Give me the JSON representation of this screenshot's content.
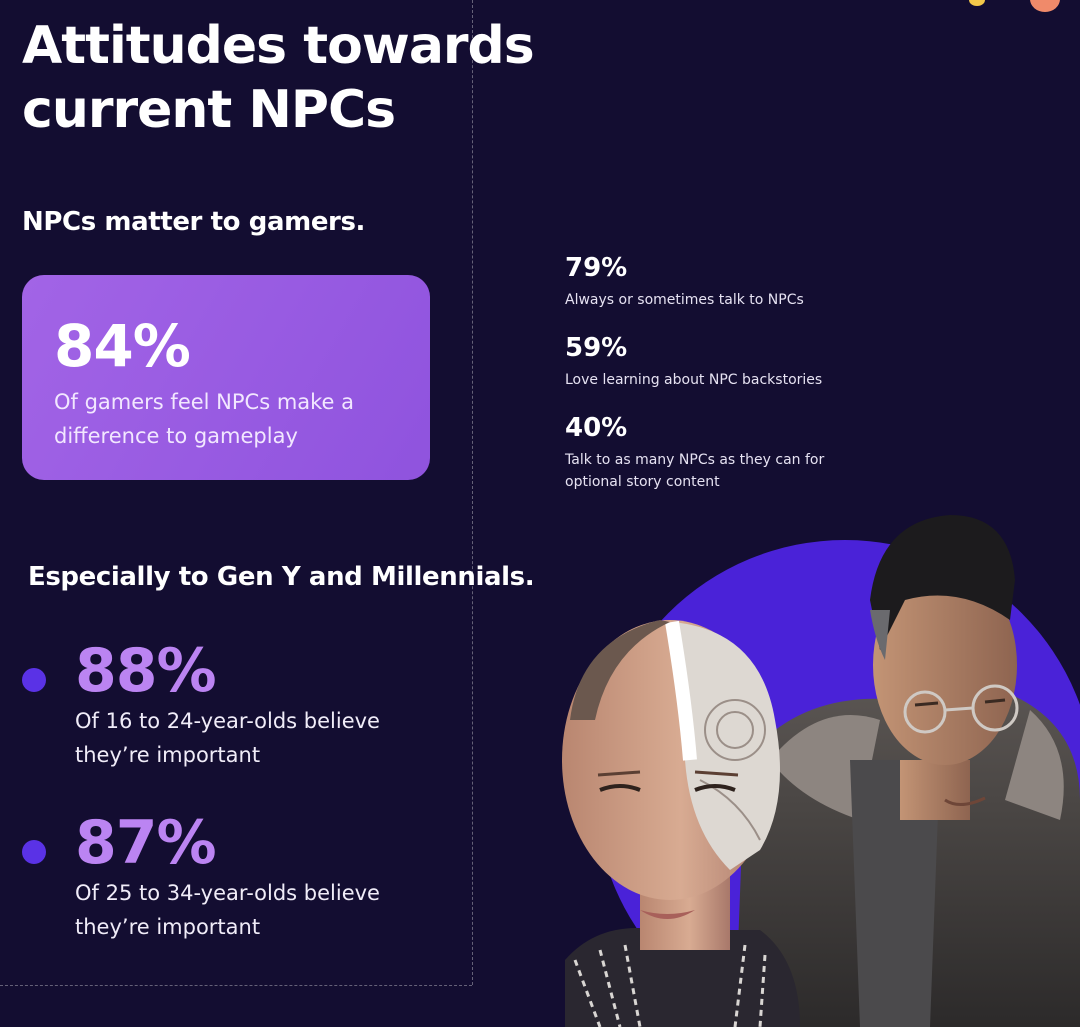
{
  "title": {
    "line1": "Attitudes towards",
    "line2": "current NPCs"
  },
  "section1": {
    "heading": "NPCs matter to gamers.",
    "hero": {
      "value": "84%",
      "caption": "Of gamers feel NPCs make a difference to gameplay"
    }
  },
  "side_stats": [
    {
      "value": "79%",
      "caption": "Always or sometimes talk to NPCs"
    },
    {
      "value": "59%",
      "caption": "Love learning about NPC backstories"
    },
    {
      "value": "40%",
      "caption": "Talk to as many NPCs as they can for optional story content"
    }
  ],
  "section2": {
    "heading": "Especially to Gen Y and Millennials.",
    "stats": [
      {
        "value": "88%",
        "caption": "Of 16 to 24-year-olds believe they’re important"
      },
      {
        "value": "87%",
        "caption": "Of 25 to 34-year-olds believe they’re important"
      }
    ]
  },
  "colors": {
    "background": "#130d31",
    "hero_card": "#9a5ce3",
    "highlight_text": "#bb84f2",
    "bullet": "#5a32e6",
    "illustration_circle": "#4a22d8"
  },
  "icons": [
    "bullet-dot-icon",
    "corner-dot-icon"
  ]
}
